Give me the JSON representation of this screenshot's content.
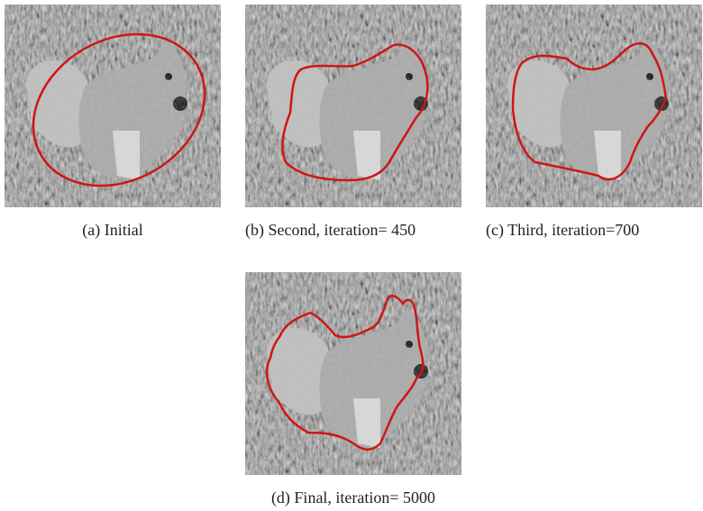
{
  "figure": {
    "subfigures": [
      {
        "caption": "(a) Initial"
      },
      {
        "caption": "(b) Second, iteration= 450"
      },
      {
        "caption": "(c) Third, iteration=700"
      },
      {
        "caption": "(d) Final, iteration= 5000"
      }
    ]
  }
}
